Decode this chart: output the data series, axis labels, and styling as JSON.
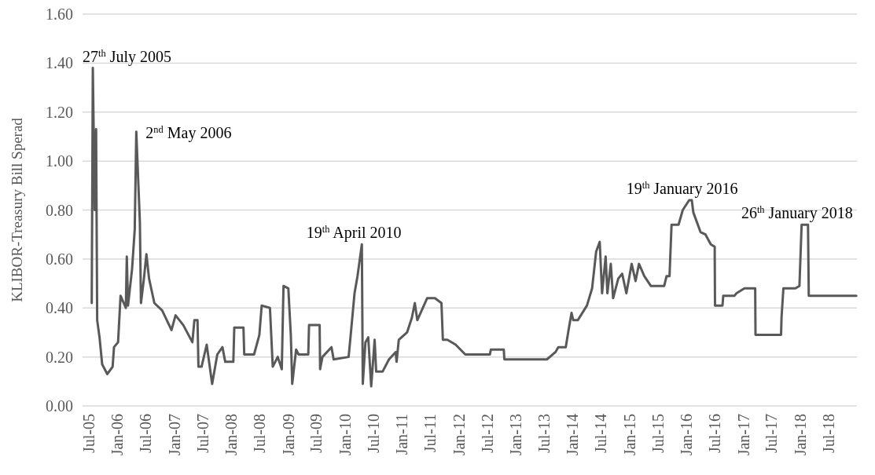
{
  "chart_data": {
    "type": "line",
    "ylabel": "KLIBOR-Treasury Bill Sperad",
    "x": [
      "2005-07-20",
      "2005-07-27",
      "2005-08-08",
      "2005-08-17",
      "2005-08-24",
      "2005-09-08",
      "2005-09-25",
      "2005-10-28",
      "2005-12-01",
      "2005-12-10",
      "2006-01-05",
      "2006-01-21",
      "2006-02-24",
      "2006-03-02",
      "2006-03-10",
      "2006-04-05",
      "2006-04-22",
      "2006-05-02",
      "2006-05-25",
      "2006-06-01",
      "2006-06-20",
      "2006-07-06",
      "2006-07-23",
      "2006-08-26",
      "2006-10-15",
      "2006-12-14",
      "2007-01-09",
      "2007-02-28",
      "2007-04-27",
      "2007-05-10",
      "2007-05-30",
      "2007-06-05",
      "2007-06-25",
      "2007-07-28",
      "2007-09-01",
      "2007-10-04",
      "2007-11-06",
      "2007-11-24",
      "2008-01-15",
      "2008-01-21",
      "2008-03-20",
      "2008-03-25",
      "2008-05-27",
      "2008-06-30",
      "2008-07-15",
      "2008-09-06",
      "2008-09-24",
      "2008-10-26",
      "2008-11-21",
      "2008-12-02",
      "2009-01-02",
      "2009-01-18",
      "2009-01-27",
      "2009-02-21",
      "2009-03-09",
      "2009-05-10",
      "2009-05-15",
      "2009-07-22",
      "2009-07-25",
      "2009-08-09",
      "2009-10-06",
      "2009-10-20",
      "2010-01-24",
      "2010-02-05",
      "2010-03-03",
      "2010-03-22",
      "2010-04-19",
      "2010-04-25",
      "2010-05-12",
      "2010-05-30",
      "2010-06-18",
      "2010-07-10",
      "2010-07-20",
      "2010-08-30",
      "2010-10-10",
      "2010-11-22",
      "2010-11-28",
      "2010-12-12",
      "2011-02-03",
      "2011-03-06",
      "2011-03-25",
      "2011-04-10",
      "2011-06-12",
      "2011-08-01",
      "2011-09-12",
      "2011-09-21",
      "2011-10-20",
      "2011-12-12",
      "2012-02-12",
      "2012-07-19",
      "2012-07-25",
      "2012-10-16",
      "2012-10-20",
      "2013-06-04",
      "2013-07-20",
      "2013-09-13",
      "2013-10-01",
      "2013-11-18",
      "2013-12-06",
      "2013-12-25",
      "2014-01-05",
      "2014-02-03",
      "2014-04-03",
      "2014-05-06",
      "2014-06-01",
      "2014-06-24",
      "2014-07-09",
      "2014-08-01",
      "2014-08-12",
      "2014-09-03",
      "2014-09-18",
      "2014-10-21",
      "2014-11-15",
      "2014-12-12",
      "2015-01-15",
      "2015-02-09",
      "2015-03-03",
      "2015-04-06",
      "2015-05-18",
      "2015-08-12",
      "2015-08-27",
      "2015-09-15",
      "2015-09-28",
      "2015-11-12",
      "2015-12-09",
      "2016-01-19",
      "2016-02-05",
      "2016-02-15",
      "2016-04-01",
      "2016-05-03",
      "2016-06-06",
      "2016-07-01",
      "2016-07-03",
      "2016-08-20",
      "2016-08-25",
      "2016-11-05",
      "2016-11-18",
      "2017-01-08",
      "2017-03-18",
      "2017-03-20",
      "2017-08-31",
      "2017-09-03",
      "2017-09-15",
      "2017-12-01",
      "2017-12-27",
      "2018-01-10",
      "2018-01-26",
      "2018-02-20",
      "2018-02-25",
      "2018-08-04",
      "2018-12-27"
    ],
    "series": [
      {
        "color": "#595959",
        "values": [
          0.42,
          1.38,
          0.8,
          1.13,
          0.35,
          0.28,
          0.17,
          0.13,
          0.16,
          0.24,
          0.26,
          0.45,
          0.4,
          0.61,
          0.41,
          0.56,
          0.72,
          1.12,
          0.75,
          0.42,
          0.52,
          0.62,
          0.52,
          0.42,
          0.39,
          0.31,
          0.37,
          0.33,
          0.26,
          0.35,
          0.35,
          0.16,
          0.16,
          0.25,
          0.09,
          0.21,
          0.24,
          0.18,
          0.18,
          0.32,
          0.32,
          0.21,
          0.21,
          0.29,
          0.41,
          0.4,
          0.16,
          0.2,
          0.15,
          0.49,
          0.48,
          0.29,
          0.09,
          0.23,
          0.21,
          0.21,
          0.33,
          0.33,
          0.15,
          0.2,
          0.24,
          0.19,
          0.2,
          0.28,
          0.46,
          0.53,
          0.66,
          0.09,
          0.26,
          0.28,
          0.08,
          0.27,
          0.14,
          0.14,
          0.19,
          0.22,
          0.18,
          0.27,
          0.3,
          0.36,
          0.42,
          0.35,
          0.44,
          0.44,
          0.42,
          0.27,
          0.27,
          0.25,
          0.21,
          0.21,
          0.23,
          0.23,
          0.19,
          0.19,
          0.19,
          0.22,
          0.24,
          0.24,
          0.31,
          0.38,
          0.35,
          0.35,
          0.41,
          0.48,
          0.63,
          0.67,
          0.46,
          0.61,
          0.46,
          0.58,
          0.44,
          0.52,
          0.54,
          0.46,
          0.58,
          0.51,
          0.58,
          0.53,
          0.49,
          0.49,
          0.53,
          0.53,
          0.74,
          0.74,
          0.8,
          0.84,
          0.84,
          0.79,
          0.71,
          0.7,
          0.66,
          0.65,
          0.41,
          0.41,
          0.45,
          0.45,
          0.46,
          0.48,
          0.48,
          0.29,
          0.29,
          0.36,
          0.48,
          0.48,
          0.49,
          0.74,
          0.74,
          0.74,
          0.45,
          0.45,
          0.45
        ]
      }
    ],
    "xlim": [
      "2005-05-22",
      "2018-12-31"
    ],
    "xticks": [
      {
        "value": "2005-07-01",
        "label": "Jul-05"
      },
      {
        "value": "2006-01-01",
        "label": "Jan-06"
      },
      {
        "value": "2006-07-01",
        "label": "Jul-06"
      },
      {
        "value": "2007-01-01",
        "label": "Jan-07"
      },
      {
        "value": "2007-07-01",
        "label": "Jul-07"
      },
      {
        "value": "2008-01-01",
        "label": "Jan-08"
      },
      {
        "value": "2008-07-01",
        "label": "Jul-08"
      },
      {
        "value": "2009-01-01",
        "label": "Jan-09"
      },
      {
        "value": "2009-07-01",
        "label": "Jul-09"
      },
      {
        "value": "2010-01-01",
        "label": "Jan-10"
      },
      {
        "value": "2010-07-01",
        "label": "Jul-10"
      },
      {
        "value": "2011-01-01",
        "label": "Jan-11"
      },
      {
        "value": "2011-07-01",
        "label": "Jul-11"
      },
      {
        "value": "2012-01-01",
        "label": "Jan-12"
      },
      {
        "value": "2012-07-01",
        "label": "Jul-12"
      },
      {
        "value": "2013-01-01",
        "label": "Jan-13"
      },
      {
        "value": "2013-07-01",
        "label": "Jul-13"
      },
      {
        "value": "2014-01-01",
        "label": "Jan-14"
      },
      {
        "value": "2014-07-01",
        "label": "Jul-14"
      },
      {
        "value": "2015-01-01",
        "label": "Jan-15"
      },
      {
        "value": "2015-07-01",
        "label": "Jul-15"
      },
      {
        "value": "2016-01-01",
        "label": "Jan-16"
      },
      {
        "value": "2016-07-01",
        "label": "Jul-16"
      },
      {
        "value": "2017-01-01",
        "label": "Jan-17"
      },
      {
        "value": "2017-07-01",
        "label": "Jul-17"
      },
      {
        "value": "2018-01-01",
        "label": "Jan-18"
      },
      {
        "value": "2018-07-01",
        "label": "Jul-18"
      }
    ],
    "ylim": [
      0,
      1.6
    ],
    "yticks": [
      {
        "value": 0,
        "label": "0.00"
      },
      {
        "value": 0.2,
        "label": "0.20"
      },
      {
        "value": 0.4,
        "label": "0.40"
      },
      {
        "value": 0.6,
        "label": "0.60"
      },
      {
        "value": 0.8,
        "label": "0.80"
      },
      {
        "value": 1,
        "label": "1.00"
      },
      {
        "value": 1.2,
        "label": "1.20"
      },
      {
        "value": 1.4,
        "label": "1.40"
      },
      {
        "value": 1.6,
        "label": "1.60"
      }
    ],
    "grid": "y",
    "marker": "none",
    "line_style": "solid",
    "annotations": [
      {
        "text": "27$^{th}$ July 2005",
        "x": "2005-07-27",
        "y": 1.38
      },
      {
        "text": "2$^{nd}$ May 2006",
        "x": "2006-05-02",
        "y": 1.12
      },
      {
        "text": "19$^{th}$ April 2010",
        "x": "2010-04-19",
        "y": 0.66
      },
      {
        "text": "19$^{th}$ January 2016",
        "x": "2016-01-19",
        "y": 0.84
      },
      {
        "text": "26$^{th}$ January 2018",
        "x": "2018-01-26",
        "y": 0.74
      }
    ]
  }
}
